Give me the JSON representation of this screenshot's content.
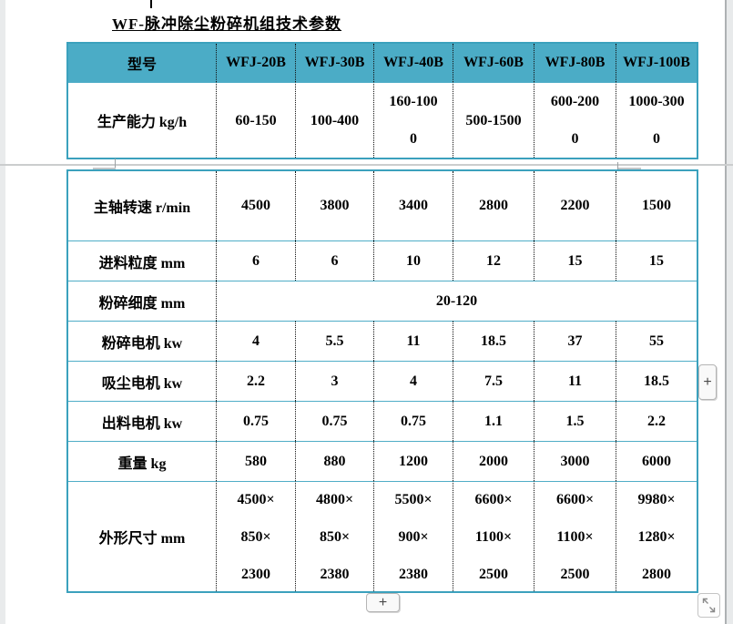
{
  "page": {
    "title": "WF-脉冲除尘粉碎机组技术参数"
  },
  "table": {
    "header": [
      "型号",
      "WFJ-20B",
      "WFJ-30B",
      "WFJ-40B",
      "WFJ-60B",
      "WFJ-80B",
      "WFJ-100B"
    ],
    "rows": [
      {
        "label": "生产能力 kg/h",
        "values": [
          "60-150",
          "100-400",
          "160-100\n0",
          "500-1500",
          "600-200\n0",
          "1000-300\n0"
        ]
      },
      {
        "label": "主轴转速 r/min",
        "values": [
          "4500",
          "3800",
          "3400",
          "2800",
          "2200",
          "1500"
        ]
      },
      {
        "label": "进料粒度 mm",
        "values": [
          "6",
          "6",
          "10",
          "12",
          "15",
          "15"
        ]
      },
      {
        "label": "粉碎细度 mm",
        "span_value": "20-120"
      },
      {
        "label": "粉碎电机 kw",
        "values": [
          "4",
          "5.5",
          "11",
          "18.5",
          "37",
          "55"
        ]
      },
      {
        "label": "吸尘电机 kw",
        "values": [
          "2.2",
          "3",
          "4",
          "7.5",
          "11",
          "18.5"
        ]
      },
      {
        "label": "出料电机 kw",
        "values": [
          "0.75",
          "0.75",
          "0.75",
          "1.1",
          "1.5",
          "2.2"
        ]
      },
      {
        "label": "重量 kg",
        "values": [
          "580",
          "880",
          "1200",
          "2000",
          "3000",
          "6000"
        ]
      },
      {
        "label": "外形尺寸 mm",
        "values": [
          "4500×\n850×\n2300",
          "4800×\n850×\n2380",
          "5500×\n900×\n2380",
          "6600×\n1100×\n2500",
          "6600×\n1100×\n2500",
          "9980×\n1280×\n2800"
        ]
      }
    ]
  },
  "controls": {
    "add_column_label": "+",
    "add_row_label": "+",
    "resize_icon": "expand-diagonal"
  },
  "colors": {
    "header_fill": "#4BACC6",
    "table_border": "#3BA1BD",
    "inner_line": "#4FADC7",
    "divider_gray": "#CBCDCE"
  }
}
